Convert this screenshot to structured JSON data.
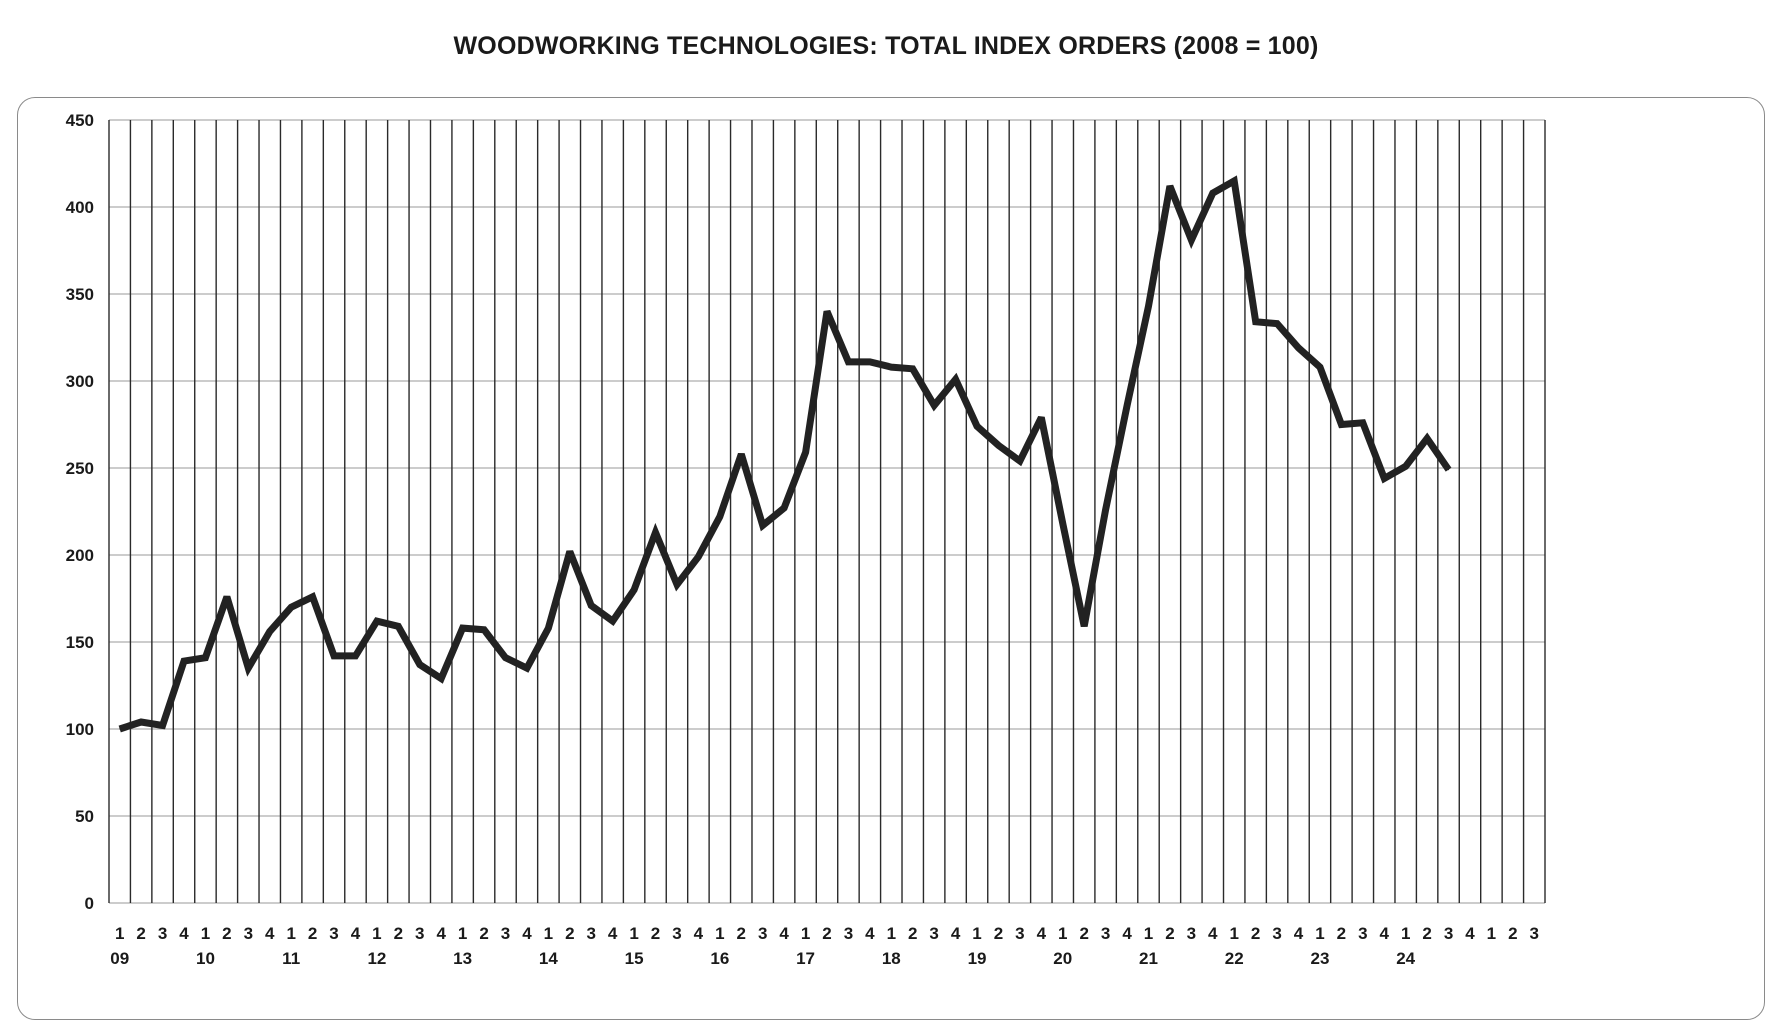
{
  "chart_data": {
    "type": "line",
    "title": "WOODWORKING TECHNOLOGIES: TOTAL INDEX ORDERS (2008 = 100)",
    "xlabel": "",
    "ylabel": "",
    "ylim": [
      0,
      450
    ],
    "y_ticks": [
      0,
      50,
      100,
      150,
      200,
      250,
      300,
      350,
      400,
      450
    ],
    "grid": true,
    "legend": "none",
    "line_color": "#222222",
    "quarter_labels": [
      "1",
      "2",
      "3",
      "4",
      "1",
      "2",
      "3",
      "4",
      "1",
      "2",
      "3",
      "4",
      "1",
      "2",
      "3",
      "4",
      "1",
      "2",
      "3",
      "4",
      "1",
      "2",
      "3",
      "4",
      "1",
      "2",
      "3",
      "4",
      "1",
      "2",
      "3",
      "4",
      "1",
      "2",
      "3",
      "4",
      "1",
      "2",
      "3",
      "4",
      "1",
      "2",
      "3",
      "4",
      "1",
      "2",
      "3",
      "4",
      "1",
      "2",
      "3",
      "4",
      "1",
      "2",
      "3",
      "4",
      "1",
      "2",
      "3",
      "4",
      "1",
      "2",
      "3",
      "4",
      "1",
      "2",
      "3"
    ],
    "year_labels": [
      {
        "label": "09",
        "index": 0
      },
      {
        "label": "10",
        "index": 4
      },
      {
        "label": "11",
        "index": 8
      },
      {
        "label": "12",
        "index": 12
      },
      {
        "label": "13",
        "index": 16
      },
      {
        "label": "14",
        "index": 20
      },
      {
        "label": "15",
        "index": 24
      },
      {
        "label": "16",
        "index": 28
      },
      {
        "label": "17",
        "index": 32
      },
      {
        "label": "18",
        "index": 36
      },
      {
        "label": "19",
        "index": 40
      },
      {
        "label": "20",
        "index": 44
      },
      {
        "label": "21",
        "index": 48
      },
      {
        "label": "22",
        "index": 52
      },
      {
        "label": "23",
        "index": 56
      },
      {
        "label": "24",
        "index": 60
      }
    ],
    "series": [
      {
        "values": [
          100,
          104,
          102,
          139,
          141,
          176,
          135,
          156,
          170,
          176,
          142,
          142,
          162,
          159,
          137,
          129,
          158,
          157,
          141,
          135,
          158,
          202,
          171,
          162,
          180,
          213,
          183,
          199,
          222,
          258,
          217,
          227,
          259,
          340,
          311,
          311,
          308,
          307,
          286,
          301,
          274,
          263,
          254,
          279,
          218,
          159,
          226,
          286,
          343,
          412,
          381,
          408,
          415,
          334,
          333,
          319,
          308,
          275,
          276,
          244,
          251,
          267,
          249
        ]
      }
    ]
  }
}
